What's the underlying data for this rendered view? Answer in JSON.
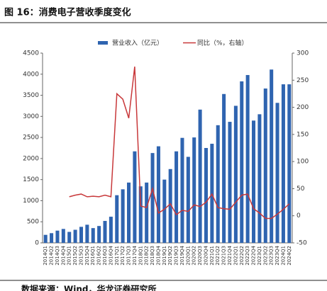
{
  "chart_data": {
    "type": "bar_line",
    "title": "图 16：消费电子营收季度变化",
    "source": "数据来源：Wind，华龙证券研究所",
    "categories": [
      "2014Q1",
      "2014Q2",
      "2014Q3",
      "2014Q4",
      "2015Q1",
      "2015Q2",
      "2015Q3",
      "2015Q4",
      "2016Q1",
      "2016Q2",
      "2016Q3",
      "2016Q4",
      "2017Q1",
      "2017Q2",
      "2017Q3",
      "2017Q4",
      "2018Q1",
      "2018Q2",
      "2018Q3",
      "2018Q4",
      "2019Q1",
      "2019Q2",
      "2019Q3",
      "2019Q4",
      "2020Q1",
      "2020Q2",
      "2020Q3",
      "2020Q4",
      "2021Q1",
      "2021Q2",
      "2021Q3",
      "2021Q4",
      "2022Q1",
      "2022Q2",
      "2022Q3",
      "2022Q4",
      "2023Q1",
      "2023Q2",
      "2023Q3",
      "2023Q4",
      "2024Q1",
      "2024Q2"
    ],
    "series": [
      {
        "name": "营业收入（亿元）",
        "color": "#2f64b0",
        "kind": "bar",
        "values": [
          190,
          230,
          290,
          330,
          260,
          310,
          380,
          430,
          350,
          400,
          520,
          620,
          1130,
          1270,
          1430,
          2170,
          1340,
          1430,
          2130,
          2290,
          1500,
          1750,
          2170,
          2490,
          2040,
          2500,
          3160,
          2250,
          2350,
          2790,
          3530,
          2870,
          3250,
          3830,
          3980,
          2900,
          3050,
          3660,
          4110,
          3320,
          3760,
          3760
        ]
      },
      {
        "name": "同比（%，右轴）",
        "color": "#c8383a",
        "kind": "line",
        "axis": "y2",
        "values": [
          null,
          null,
          null,
          null,
          35,
          38,
          40,
          35,
          36,
          35,
          38,
          35,
          225,
          215,
          180,
          275,
          18,
          15,
          50,
          5,
          12,
          22,
          2,
          10,
          8,
          20,
          17,
          25,
          40,
          15,
          13,
          12,
          25,
          38,
          40,
          13,
          5,
          -5,
          -5,
          3,
          12,
          22
        ]
      }
    ],
    "ylim": [
      0,
      4500
    ],
    "yticks": [
      0,
      500,
      1000,
      1500,
      2000,
      2500,
      3000,
      3500,
      4000,
      4500
    ],
    "y2lim": [
      -50,
      300
    ],
    "y2ticks": [
      -50,
      0,
      50,
      100,
      150,
      200,
      250,
      300
    ],
    "legend": "top"
  }
}
